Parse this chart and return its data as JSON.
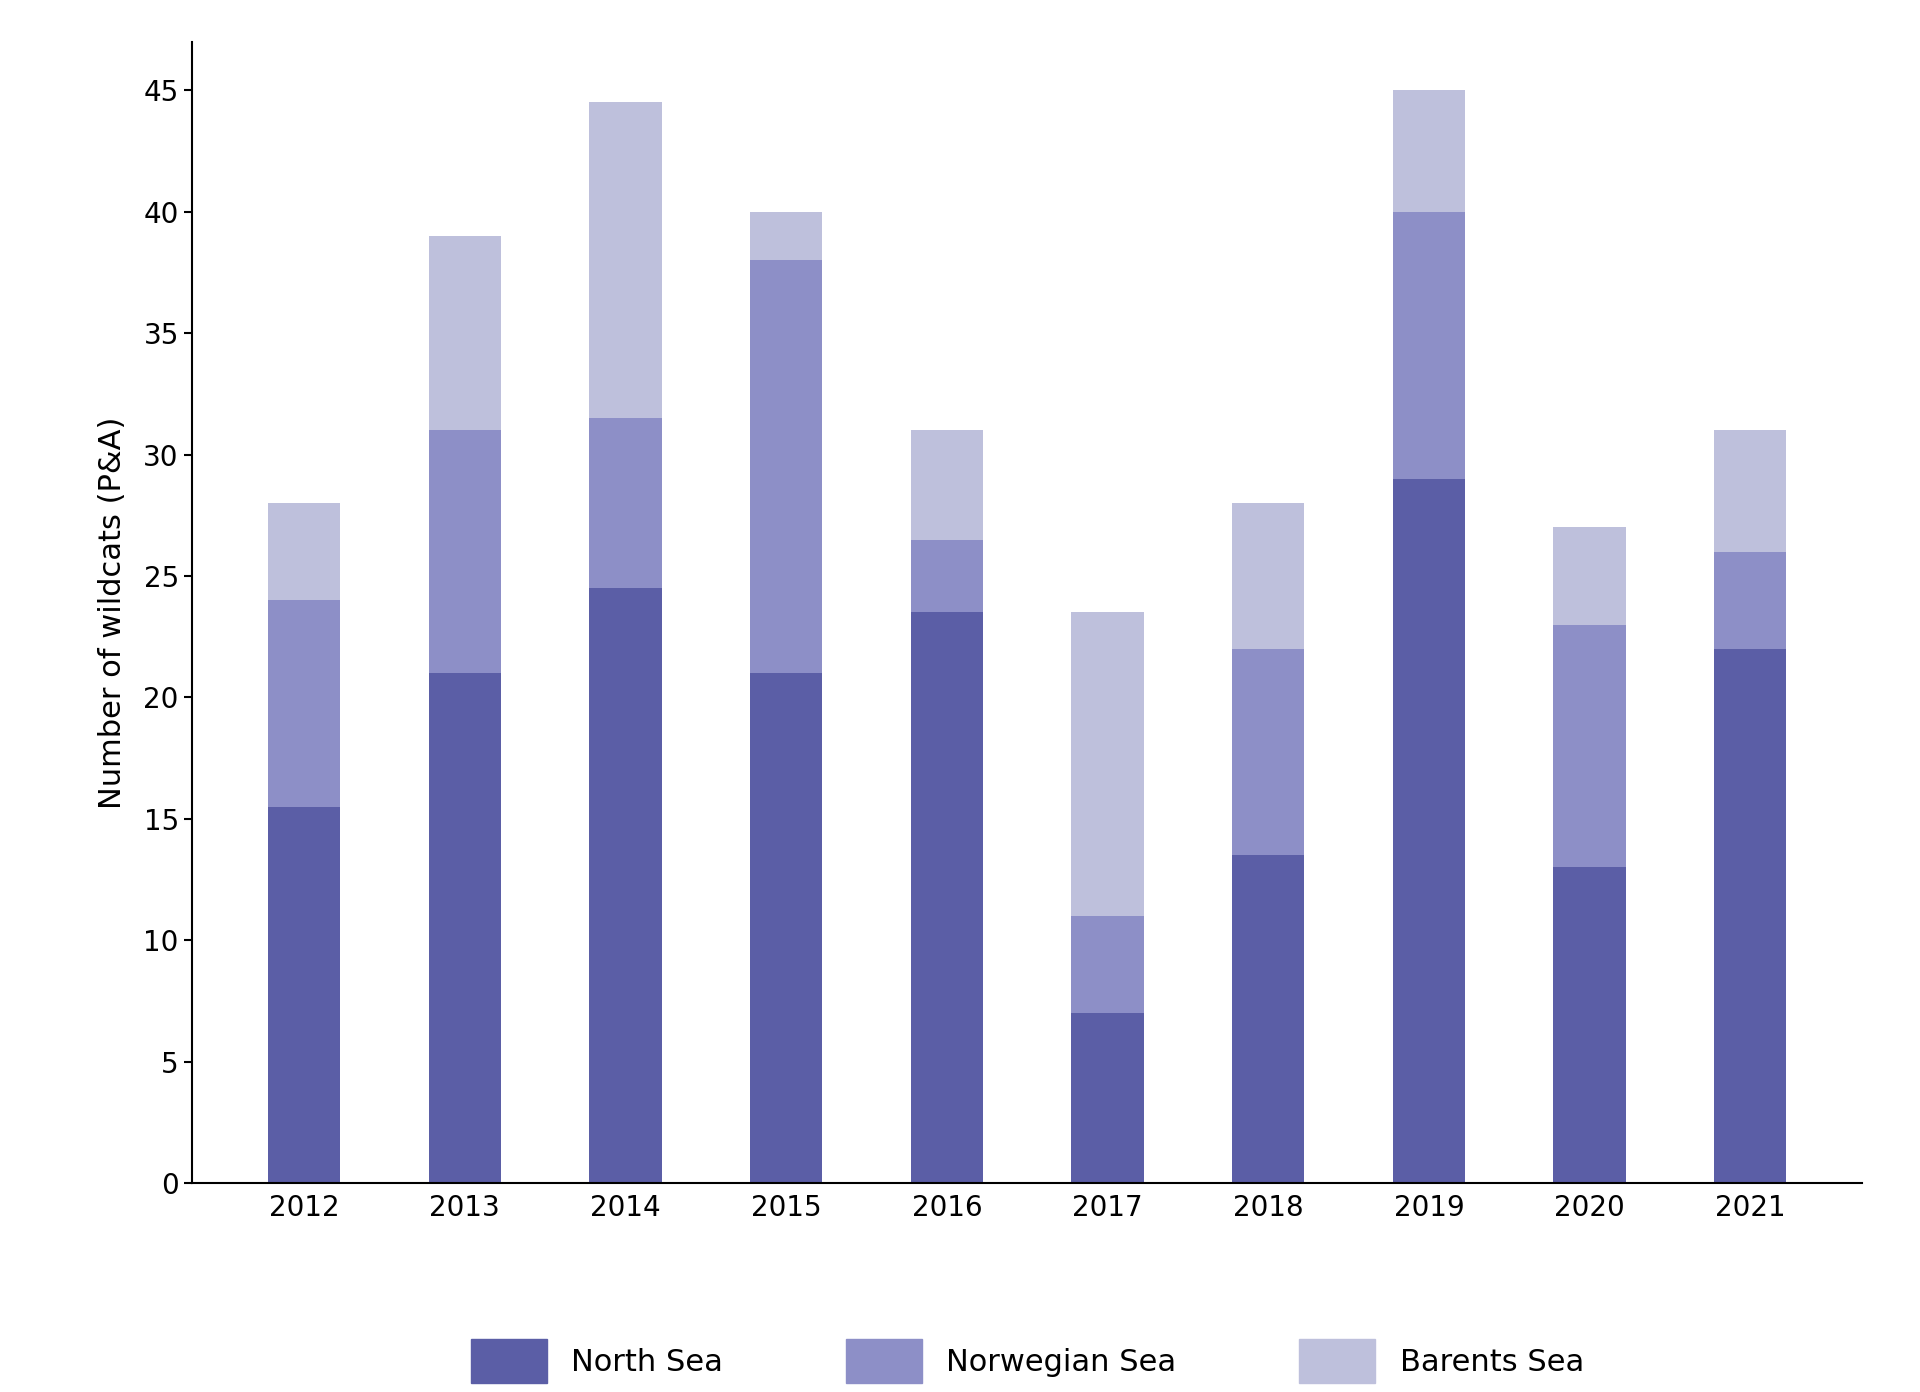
{
  "years": [
    2012,
    2013,
    2014,
    2015,
    2016,
    2017,
    2018,
    2019,
    2020,
    2021
  ],
  "north_sea": [
    15.5,
    21,
    24.5,
    21,
    23.5,
    7,
    13.5,
    29,
    13,
    22
  ],
  "norwegian_sea": [
    8.5,
    10,
    7,
    17,
    3,
    4,
    8.5,
    11,
    10,
    4
  ],
  "barents_sea": [
    4,
    8,
    13,
    2,
    4.5,
    12.5,
    6,
    5,
    4,
    5
  ],
  "color_north": "#5b5ea6",
  "color_norwegian": "#8d8fc7",
  "color_barents": "#bec0dc",
  "ylabel": "Number of wildcats (P&A)",
  "ylim": [
    0,
    47
  ],
  "yticks": [
    0,
    5,
    10,
    15,
    20,
    25,
    30,
    35,
    40,
    45
  ],
  "legend_labels": [
    "North Sea",
    "Norwegian Sea",
    "Barents Sea"
  ],
  "bar_width": 0.45,
  "background_color": "#ffffff",
  "label_fontsize": 22,
  "tick_fontsize": 20,
  "legend_fontsize": 22
}
